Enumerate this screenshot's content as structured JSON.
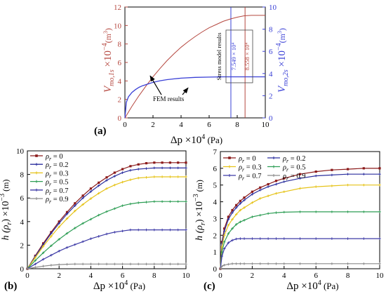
{
  "colors": {
    "left_series": "#b5473f",
    "right_series": "#3a40d6",
    "c0": "#8b1a1a",
    "c02": "#2b2f9e",
    "c03": "#e6c319",
    "c05": "#2e9e55",
    "c07": "#3d3aa6",
    "c09": "#8a8a8a",
    "axis": "#000000",
    "annot_line_red": "#b5473f",
    "annot_line_blue": "#3a40d6"
  },
  "chart_data": [
    {
      "type": "line",
      "panel_label": "(a)",
      "xlabel_main": "Δp ×10",
      "xlabel_exp": "4",
      "xlabel_unit": "(Pa)",
      "ylabel_left_main": "V",
      "ylabel_left_sub": "mo,1s",
      "ylabel_left_mult": " ×10",
      "ylabel_left_exp": "−4",
      "ylabel_left_unit": "(m",
      "ylabel_left_unit_exp": "3",
      "ylabel_left_close": ")",
      "ylabel_right_main": "V",
      "ylabel_right_sub": "mo,2s",
      "ylabel_right_mult": " ×10",
      "ylabel_right_exp": "−4",
      "ylabel_right_unit": "(m",
      "ylabel_right_unit_exp": "3",
      "ylabel_right_close": ")",
      "xlim": [
        0,
        10
      ],
      "ylim_left": [
        0,
        12
      ],
      "ylim_right": [
        0,
        10
      ],
      "xticks": [
        "0",
        "2",
        "4",
        "6",
        "8",
        "10"
      ],
      "yticks_left": [
        "0",
        "2",
        "4",
        "6",
        "8",
        "10",
        "12"
      ],
      "yticks_right": [
        "0",
        "2",
        "4",
        "6",
        "8",
        "10"
      ],
      "annotations": {
        "fem": "FEM results",
        "stress_model": "Stress model results",
        "v1": "7.549 × 10⁴",
        "v2": "8.558 × 10⁴"
      },
      "vlines": [
        7.549,
        8.558
      ],
      "series": [
        {
          "axis": "left",
          "x": [
            0,
            0.5,
            1,
            1.5,
            2,
            2.5,
            3,
            3.5,
            4,
            4.5,
            5,
            5.5,
            6,
            6.5,
            7,
            7.5,
            8,
            8.5,
            9,
            9.5,
            10
          ],
          "y": [
            0,
            1.25,
            2.4,
            3.45,
            4.45,
            5.35,
            6.2,
            6.95,
            7.65,
            8.25,
            8.8,
            9.3,
            9.75,
            10.1,
            10.45,
            10.7,
            10.9,
            11.05,
            11.1,
            11.1,
            11.1
          ]
        },
        {
          "axis": "right",
          "x": [
            0,
            0.1,
            0.25,
            0.5,
            0.75,
            1,
            1.25,
            1.5,
            2,
            2.5,
            3,
            3.5,
            4,
            5,
            6,
            7,
            8,
            9,
            10
          ],
          "y": [
            0,
            1.4,
            1.9,
            2.3,
            2.55,
            2.75,
            2.9,
            3.0,
            3.2,
            3.35,
            3.45,
            3.52,
            3.58,
            3.65,
            3.68,
            3.7,
            3.7,
            3.7,
            3.7
          ]
        }
      ]
    },
    {
      "type": "line",
      "panel_label": "(b)",
      "xlabel_main": "Δp ×10",
      "xlabel_exp": "4",
      "xlabel_unit": "(Pa)",
      "ylabel_main": "h (ρ",
      "ylabel_sub": "r",
      "ylabel_mid": ") ×10",
      "ylabel_exp": "−3",
      "ylabel_unit": "(m)",
      "xlim": [
        0,
        10
      ],
      "ylim": [
        0,
        10
      ],
      "xticks": [
        "0",
        "2",
        "4",
        "6",
        "8",
        "10"
      ],
      "yticks": [
        "0",
        "2",
        "4",
        "6",
        "8",
        "10"
      ],
      "x": [
        0,
        0.5,
        1,
        1.5,
        2,
        2.5,
        3,
        3.5,
        4,
        4.5,
        5,
        5.5,
        6,
        6.5,
        7,
        7.5,
        8,
        8.5,
        9,
        9.5,
        10
      ],
      "series": [
        {
          "name": "ρr = 0",
          "name_main": "ρ",
          "name_sub": "r",
          "name_val": " = 0",
          "color": "c0",
          "values": [
            0,
            1.1,
            2.15,
            3.1,
            4.0,
            4.8,
            5.55,
            6.2,
            6.8,
            7.3,
            7.75,
            8.15,
            8.45,
            8.7,
            8.85,
            8.95,
            9.0,
            9.0,
            9.0,
            9.0,
            9.0
          ]
        },
        {
          "name": "ρr = 0.2",
          "name_main": "ρ",
          "name_sub": "r",
          "name_val": " = 0.2",
          "color": "c02",
          "values": [
            0,
            1.05,
            2.05,
            3.0,
            3.85,
            4.65,
            5.35,
            6.0,
            6.55,
            7.05,
            7.5,
            7.85,
            8.15,
            8.35,
            8.45,
            8.5,
            8.55,
            8.55,
            8.55,
            8.55,
            8.55
          ]
        },
        {
          "name": "ρr = 0.3",
          "name_main": "ρ",
          "name_sub": "r",
          "name_val": " = 0.3",
          "color": "c03",
          "values": [
            0,
            0.95,
            1.9,
            2.75,
            3.55,
            4.25,
            4.9,
            5.45,
            5.95,
            6.4,
            6.8,
            7.1,
            7.35,
            7.55,
            7.7,
            7.75,
            7.8,
            7.8,
            7.8,
            7.8,
            7.8
          ]
        },
        {
          "name": "ρr = 0.5",
          "name_main": "ρ",
          "name_sub": "r",
          "name_val": " = 0.5",
          "color": "c05",
          "values": [
            0,
            0.7,
            1.35,
            1.95,
            2.5,
            3.0,
            3.45,
            3.85,
            4.2,
            4.55,
            4.85,
            5.1,
            5.35,
            5.5,
            5.6,
            5.65,
            5.7,
            5.7,
            5.7,
            5.7,
            5.7
          ]
        },
        {
          "name": "ρr = 0.7",
          "name_main": "ρ",
          "name_sub": "r",
          "name_val": " = 0.7",
          "color": "c07",
          "values": [
            0,
            0.4,
            0.8,
            1.15,
            1.5,
            1.8,
            2.05,
            2.3,
            2.55,
            2.75,
            2.95,
            3.1,
            3.2,
            3.3,
            3.3,
            3.3,
            3.3,
            3.3,
            3.3,
            3.3,
            3.3
          ]
        },
        {
          "name": "ρr = 0.9",
          "name_main": "ρ",
          "name_sub": "r",
          "name_val": " = 0.9",
          "color": "c09",
          "values": [
            0,
            0.12,
            0.22,
            0.3,
            0.35,
            0.38,
            0.4,
            0.4,
            0.4,
            0.4,
            0.4,
            0.4,
            0.4,
            0.4,
            0.4,
            0.4,
            0.4,
            0.4,
            0.4,
            0.4,
            0.4
          ]
        }
      ]
    },
    {
      "type": "line",
      "panel_label": "(c)",
      "xlabel_main": "Δp ×10",
      "xlabel_exp": "4",
      "xlabel_unit": "(Pa)",
      "ylabel_main": "h (ρ",
      "ylabel_sub": "r",
      "ylabel_mid": ") ×10",
      "ylabel_exp": "−3",
      "ylabel_unit": "(m)",
      "xlim": [
        0,
        10
      ],
      "ylim": [
        0,
        7
      ],
      "xticks": [
        "0",
        "2",
        "4",
        "6",
        "8",
        "10"
      ],
      "yticks": [
        "0",
        "1",
        "2",
        "3",
        "4",
        "5",
        "6",
        "7"
      ],
      "x": [
        0,
        0.1,
        0.25,
        0.5,
        0.75,
        1,
        1.25,
        1.5,
        2,
        2.5,
        3,
        3.5,
        4,
        5,
        6,
        7,
        8,
        9,
        10
      ],
      "series": [
        {
          "name": "ρr = 0",
          "name_main": "ρ",
          "name_sub": "r",
          "name_val": " = 0",
          "color": "c0",
          "values": [
            0,
            1.6,
            2.4,
            3.1,
            3.5,
            3.8,
            4.05,
            4.25,
            4.6,
            4.85,
            5.05,
            5.25,
            5.4,
            5.65,
            5.8,
            5.9,
            5.95,
            6.0,
            6.0
          ]
        },
        {
          "name": "ρr = 0.2",
          "name_main": "ρ",
          "name_sub": "r",
          "name_val": " = 0.2",
          "color": "c02",
          "values": [
            0,
            1.5,
            2.25,
            2.95,
            3.35,
            3.65,
            3.9,
            4.1,
            4.45,
            4.7,
            4.9,
            5.05,
            5.2,
            5.4,
            5.55,
            5.6,
            5.65,
            5.65,
            5.65
          ]
        },
        {
          "name": "ρr = 0.3",
          "name_main": "ρ",
          "name_sub": "r",
          "name_val": " = 0.3",
          "color": "c03",
          "values": [
            0,
            1.3,
            2.0,
            2.6,
            2.95,
            3.25,
            3.5,
            3.65,
            3.95,
            4.2,
            4.35,
            4.5,
            4.6,
            4.8,
            4.9,
            4.95,
            5.0,
            5.0,
            5.0
          ]
        },
        {
          "name": "ρr = 0.5",
          "name_main": "ρ",
          "name_sub": "r",
          "name_val": " = 0.5",
          "color": "c05",
          "values": [
            0,
            1.0,
            1.6,
            2.1,
            2.4,
            2.65,
            2.8,
            2.9,
            3.1,
            3.2,
            3.3,
            3.35,
            3.38,
            3.4,
            3.4,
            3.4,
            3.4,
            3.4,
            3.4
          ]
        },
        {
          "name": "ρr = 0.7",
          "name_main": "ρ",
          "name_sub": "r",
          "name_val": " = 0.7",
          "color": "c07",
          "values": [
            0,
            0.75,
            1.2,
            1.55,
            1.7,
            1.78,
            1.8,
            1.8,
            1.8,
            1.8,
            1.8,
            1.8,
            1.8,
            1.8,
            1.8,
            1.8,
            1.8,
            1.8,
            1.8
          ]
        },
        {
          "name": "ρr = 0.9",
          "name_main": "ρ",
          "name_sub": "r",
          "name_val": " = 0.9",
          "color": "c09",
          "values": [
            0,
            0.15,
            0.22,
            0.27,
            0.3,
            0.3,
            0.3,
            0.3,
            0.3,
            0.3,
            0.3,
            0.3,
            0.3,
            0.3,
            0.3,
            0.3,
            0.3,
            0.3,
            0.3
          ]
        }
      ]
    }
  ]
}
